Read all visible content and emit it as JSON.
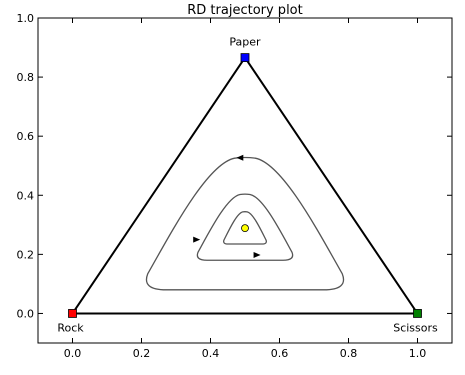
{
  "chart_data": {
    "type": "line",
    "title": "RD trajectory plot",
    "xlabel": "",
    "ylabel": "",
    "xlim": [
      -0.1,
      1.1
    ],
    "ylim": [
      -0.1,
      1.0
    ],
    "xticks": [
      0.0,
      0.2,
      0.4,
      0.6,
      0.8,
      1.0
    ],
    "xtick_labels": [
      "0.0",
      "0.2",
      "0.4",
      "0.6",
      "0.8",
      "1.0"
    ],
    "yticks": [
      0.0,
      0.2,
      0.4,
      0.6,
      0.8,
      1.0
    ],
    "ytick_labels": [
      "0.0",
      "0.2",
      "0.4",
      "0.6",
      "0.8",
      "1.0"
    ],
    "grid": false,
    "simplex": {
      "color": "#000000",
      "vertices": [
        {
          "label": "Rock",
          "x": 0.0,
          "y": 0.0,
          "color": "#ff0000"
        },
        {
          "label": "Paper",
          "x": 0.5,
          "y": 0.866,
          "color": "#0000ff"
        },
        {
          "label": "Scissors",
          "x": 1.0,
          "y": 0.0,
          "color": "#008000"
        }
      ]
    },
    "trajectories": {
      "color": "#555555",
      "center": {
        "x": 0.5,
        "y": 0.2887
      },
      "orbits": [
        {
          "name": "outer",
          "left_x": 0.2,
          "right_x": 0.8,
          "top_y": 0.53,
          "bottom_y": 0.08
        },
        {
          "name": "middle",
          "left_x": 0.355,
          "right_x": 0.645,
          "top_y": 0.405,
          "bottom_y": 0.18
        },
        {
          "name": "inner",
          "left_x": 0.435,
          "right_x": 0.565,
          "top_y": 0.345,
          "bottom_y": 0.235
        }
      ]
    },
    "equilibrium": {
      "x": 0.5,
      "y": 0.2887,
      "color": "#ffff00"
    }
  }
}
